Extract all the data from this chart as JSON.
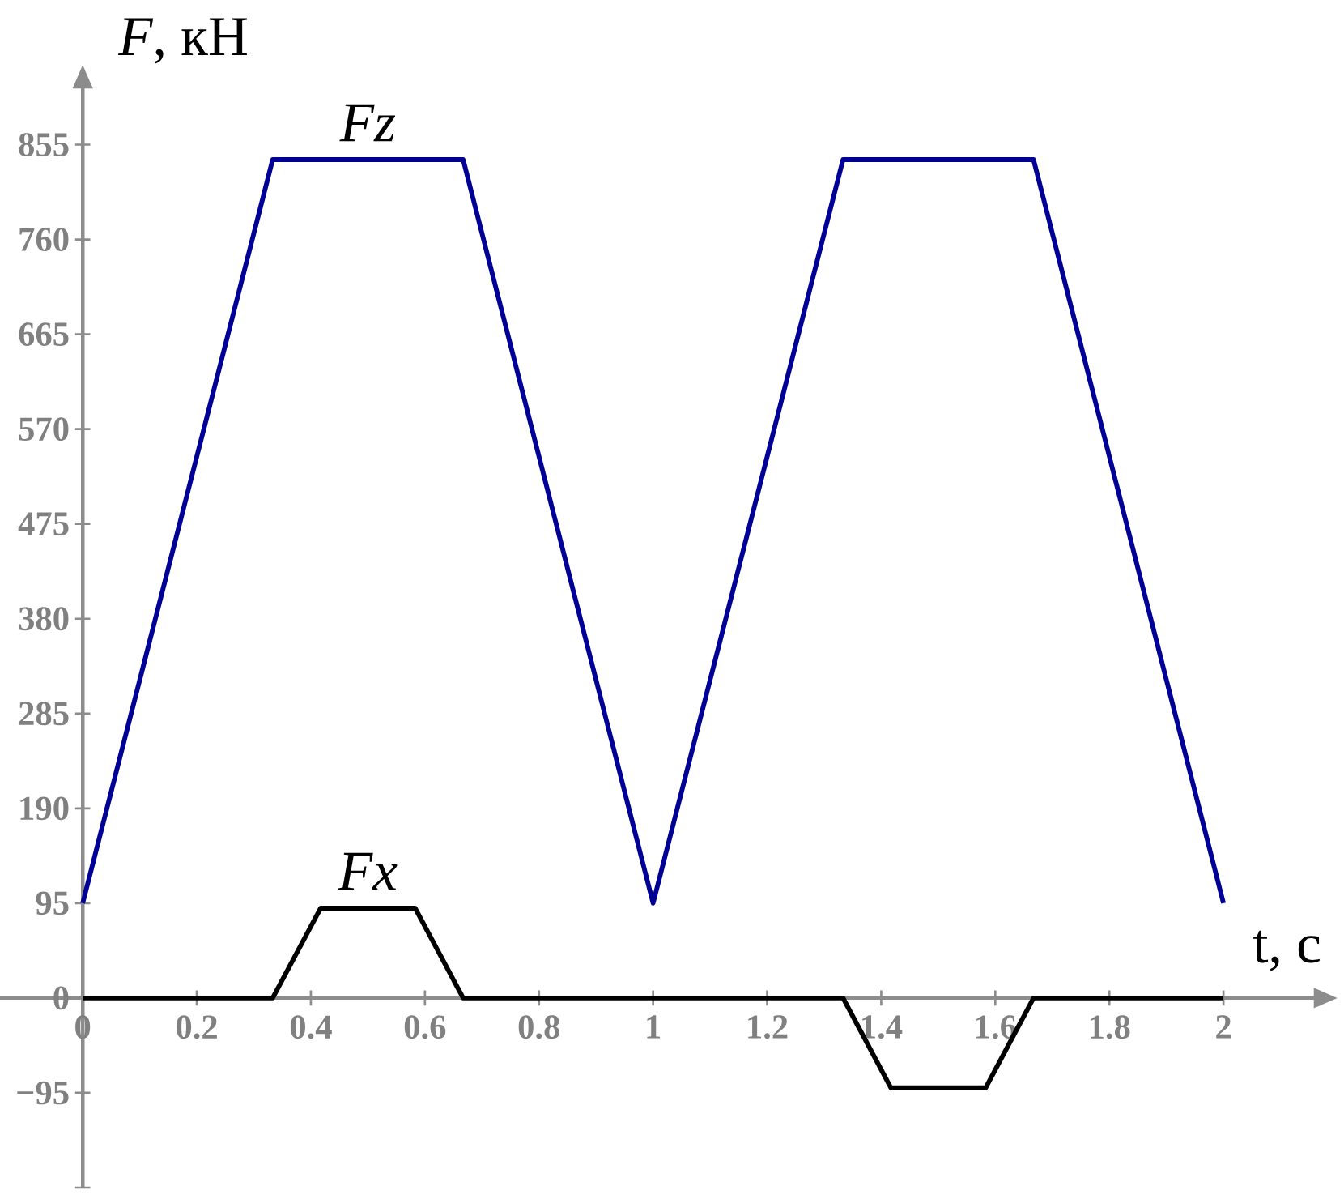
{
  "chart_data": {
    "type": "line",
    "xlabel": "t, с",
    "ylabel": "*F*, кН",
    "xlim": [
      -0.145,
      2.2
    ],
    "ylim": [
      -190,
      935
    ],
    "xticks": [
      0,
      0.2,
      0.4,
      0.6,
      0.8,
      1,
      1.2,
      1.4,
      1.6,
      1.8,
      2
    ],
    "yticks": [
      {
        "value": -190,
        "label": null
      },
      {
        "value": -95,
        "label": "−95"
      },
      0,
      95,
      190,
      285,
      380,
      475,
      570,
      665,
      760,
      855
    ],
    "series": [
      {
        "name": "Fz",
        "color": "#000096",
        "x": [
          0,
          0.333,
          0.667,
          1,
          1.333,
          1.667,
          2
        ],
        "values": [
          95,
          840,
          840,
          95,
          840,
          840,
          95
        ]
      },
      {
        "name": "Fx",
        "color": "#000000",
        "x": [
          0,
          0.333,
          0.417,
          0.583,
          0.667,
          1.333,
          1.417,
          1.583,
          1.667,
          2
        ],
        "values": [
          0,
          0,
          90,
          90,
          0,
          0,
          -90,
          -90,
          0,
          0
        ]
      }
    ]
  }
}
